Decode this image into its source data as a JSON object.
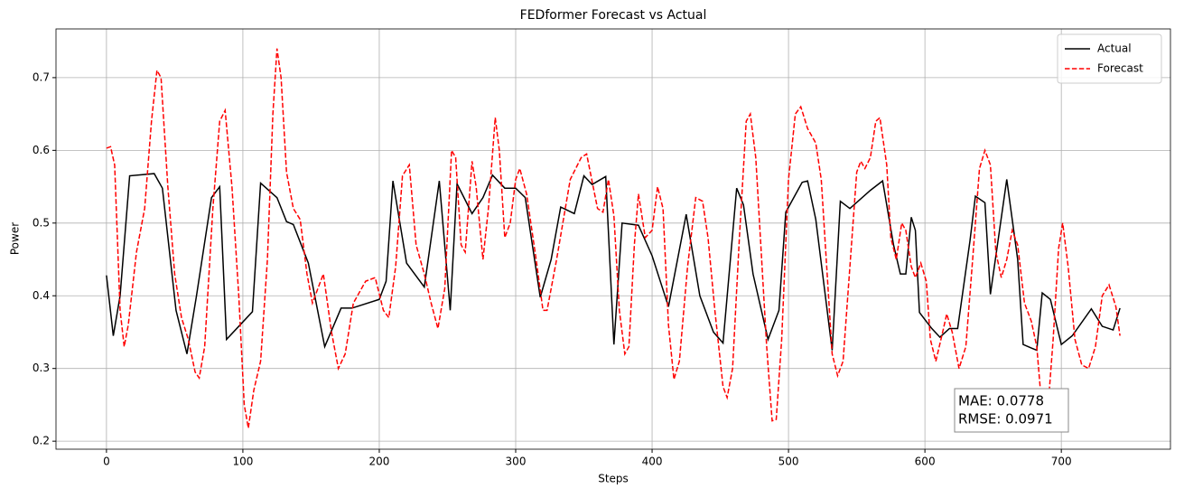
{
  "chart_data": {
    "type": "line",
    "title": "FEDformer Forecast vs Actual",
    "x_label": "Steps",
    "y_label": "Power",
    "xlim": [
      -37,
      780
    ],
    "ylim": [
      0.189,
      0.767
    ],
    "xticks": [
      0,
      100,
      200,
      300,
      400,
      500,
      600,
      700
    ],
    "yticks": [
      0.2,
      0.3,
      0.4,
      0.5,
      0.6,
      0.7
    ],
    "grid": true,
    "legend": "upper-right",
    "annotation": [
      "MAE: 0.0778",
      "RMSE: 0.0971"
    ],
    "series": [
      {
        "name": "Actual",
        "color": "#000000",
        "dash": "solid",
        "x": [
          0,
          5,
          10,
          17,
          35,
          41,
          51,
          59,
          66,
          77,
          83,
          88,
          107,
          113,
          125,
          132,
          137,
          148,
          160,
          172,
          180,
          200,
          205,
          210,
          220,
          233,
          244,
          252,
          257,
          268,
          276,
          283,
          292,
          300,
          307,
          318,
          326,
          333,
          343,
          350,
          356,
          366,
          372,
          378,
          390,
          400,
          412,
          425,
          435,
          445,
          452,
          462,
          467,
          474,
          485,
          493,
          498,
          510,
          514,
          520,
          532,
          538,
          545,
          560,
          569,
          577,
          582,
          586,
          590,
          593,
          596,
          605,
          611,
          618,
          624,
          633,
          637,
          644,
          648,
          660,
          668,
          672,
          682,
          686,
          692,
          700,
          708,
          722,
          730,
          738,
          743
        ],
        "values": [
          0.428,
          0.345,
          0.4,
          0.565,
          0.568,
          0.548,
          0.38,
          0.32,
          0.4,
          0.535,
          0.55,
          0.34,
          0.378,
          0.555,
          0.535,
          0.502,
          0.498,
          0.445,
          0.33,
          0.383,
          0.383,
          0.395,
          0.42,
          0.558,
          0.445,
          0.412,
          0.558,
          0.38,
          0.554,
          0.513,
          0.535,
          0.566,
          0.548,
          0.548,
          0.535,
          0.398,
          0.45,
          0.522,
          0.513,
          0.565,
          0.553,
          0.564,
          0.333,
          0.5,
          0.497,
          0.455,
          0.385,
          0.512,
          0.4,
          0.35,
          0.335,
          0.548,
          0.525,
          0.43,
          0.34,
          0.38,
          0.515,
          0.556,
          0.558,
          0.505,
          0.325,
          0.53,
          0.52,
          0.545,
          0.558,
          0.47,
          0.43,
          0.43,
          0.508,
          0.49,
          0.377,
          0.355,
          0.343,
          0.355,
          0.355,
          0.475,
          0.537,
          0.528,
          0.402,
          0.56,
          0.45,
          0.333,
          0.325,
          0.404,
          0.395,
          0.333,
          0.345,
          0.382,
          0.358,
          0.353,
          0.383
        ]
      },
      {
        "name": "Forecast",
        "color": "#ff0000",
        "dash": "dashed",
        "x": [
          0,
          3,
          6,
          10,
          13,
          16,
          22,
          28,
          33,
          37,
          40,
          45,
          50,
          55,
          60,
          65,
          68,
          72,
          78,
          83,
          87,
          92,
          97,
          101,
          104,
          108,
          113,
          118,
          122,
          125,
          128,
          132,
          137,
          142,
          147,
          151,
          155,
          159,
          165,
          170,
          175,
          181,
          190,
          197,
          203,
          207,
          212,
          217,
          222,
          227,
          233,
          238,
          243,
          248,
          253,
          256,
          260,
          263,
          268,
          271,
          276,
          280,
          285,
          288,
          292,
          296,
          300,
          303,
          308,
          315,
          320,
          323,
          330,
          340,
          348,
          352,
          360,
          364,
          368,
          372,
          376,
          380,
          383,
          387,
          390,
          395,
          400,
          404,
          408,
          412,
          416,
          420,
          426,
          432,
          437,
          441,
          446,
          452,
          455,
          459,
          464,
          469,
          472,
          476,
          480,
          484,
          488,
          491,
          495,
          500,
          505,
          509,
          514,
          520,
          524,
          528,
          532,
          536,
          540,
          545,
          550,
          553,
          556,
          560,
          564,
          567,
          572,
          575,
          579,
          583,
          586,
          590,
          593,
          597,
          601,
          604,
          608,
          613,
          616,
          620,
          625,
          630,
          635,
          640,
          644,
          648,
          652,
          656,
          660,
          664,
          668,
          673,
          678,
          682,
          686,
          690,
          694,
          698,
          701,
          705,
          710,
          715,
          720,
          725,
          730,
          735,
          740,
          743
        ],
        "values": [
          0.603,
          0.605,
          0.58,
          0.38,
          0.33,
          0.36,
          0.46,
          0.52,
          0.64,
          0.71,
          0.7,
          0.55,
          0.43,
          0.37,
          0.34,
          0.295,
          0.287,
          0.33,
          0.52,
          0.64,
          0.655,
          0.55,
          0.4,
          0.25,
          0.218,
          0.27,
          0.31,
          0.45,
          0.65,
          0.74,
          0.7,
          0.57,
          0.52,
          0.505,
          0.43,
          0.39,
          0.41,
          0.43,
          0.35,
          0.3,
          0.32,
          0.39,
          0.42,
          0.425,
          0.38,
          0.37,
          0.44,
          0.565,
          0.58,
          0.47,
          0.43,
          0.39,
          0.355,
          0.41,
          0.6,
          0.59,
          0.47,
          0.46,
          0.585,
          0.55,
          0.45,
          0.52,
          0.645,
          0.6,
          0.48,
          0.5,
          0.56,
          0.575,
          0.54,
          0.45,
          0.38,
          0.38,
          0.45,
          0.56,
          0.59,
          0.595,
          0.52,
          0.515,
          0.56,
          0.51,
          0.38,
          0.32,
          0.33,
          0.47,
          0.54,
          0.48,
          0.49,
          0.55,
          0.52,
          0.36,
          0.285,
          0.31,
          0.44,
          0.535,
          0.53,
          0.48,
          0.38,
          0.275,
          0.26,
          0.3,
          0.48,
          0.64,
          0.65,
          0.59,
          0.46,
          0.33,
          0.228,
          0.23,
          0.34,
          0.56,
          0.65,
          0.66,
          0.63,
          0.61,
          0.56,
          0.44,
          0.32,
          0.29,
          0.31,
          0.44,
          0.57,
          0.585,
          0.575,
          0.59,
          0.64,
          0.645,
          0.58,
          0.48,
          0.45,
          0.5,
          0.49,
          0.44,
          0.425,
          0.445,
          0.42,
          0.34,
          0.31,
          0.35,
          0.375,
          0.35,
          0.3,
          0.33,
          0.45,
          0.575,
          0.6,
          0.58,
          0.46,
          0.425,
          0.45,
          0.49,
          0.47,
          0.39,
          0.365,
          0.33,
          0.24,
          0.24,
          0.34,
          0.465,
          0.5,
          0.44,
          0.34,
          0.305,
          0.3,
          0.33,
          0.4,
          0.415,
          0.385,
          0.345
        ]
      }
    ]
  }
}
